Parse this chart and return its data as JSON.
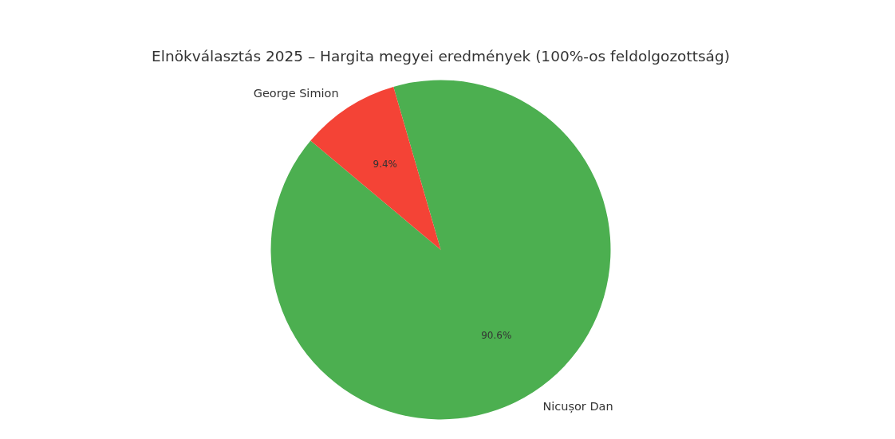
{
  "chart_data": {
    "type": "pie",
    "title": "Elnökválasztás 2025 – Hargita megyei eredmények (100%-os feldolgozottság)",
    "categories": [
      "Nicușor Dan",
      "George Simion"
    ],
    "values": [
      90.6,
      9.4
    ],
    "colors": [
      "#4caf50",
      "#f44336"
    ],
    "value_labels": [
      "90.6%",
      "9.4%"
    ]
  }
}
